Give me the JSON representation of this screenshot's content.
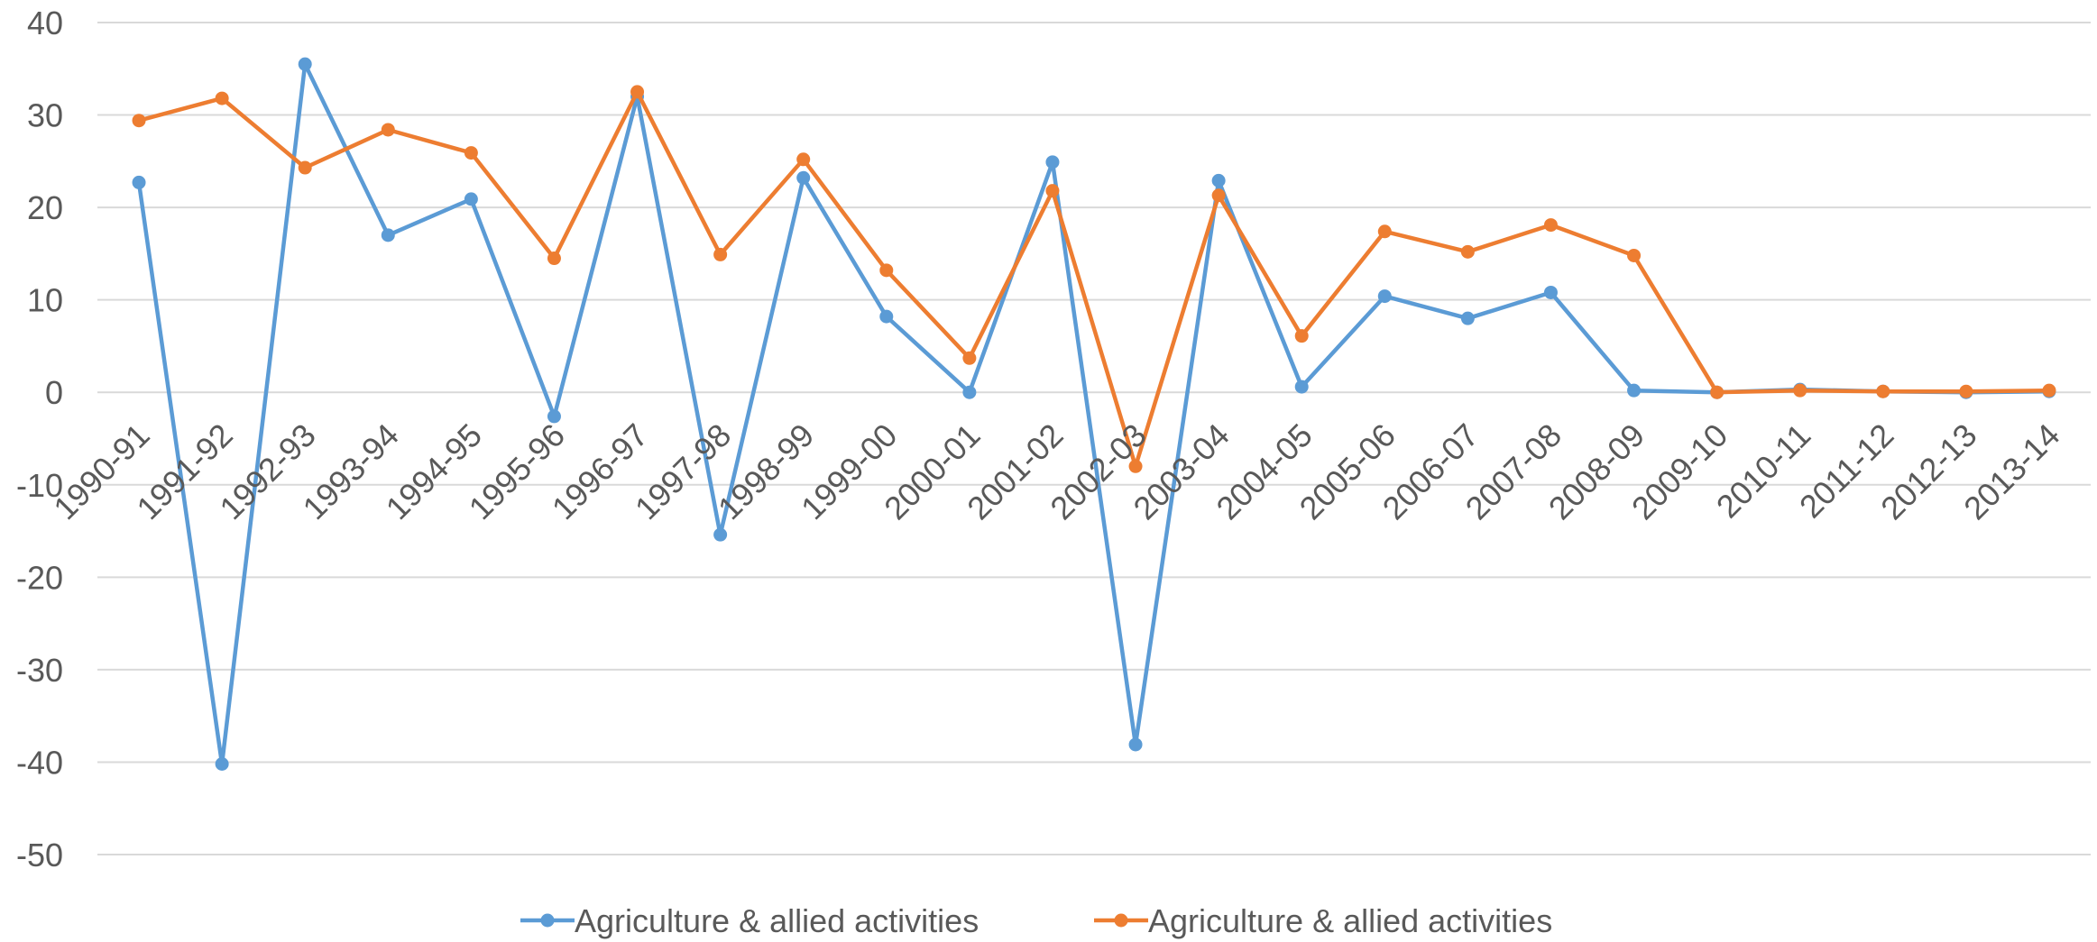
{
  "chart_data": {
    "type": "line",
    "title": "",
    "xlabel": "",
    "ylabel": "",
    "categories": [
      "1990-91",
      "1991-92",
      "1992-93",
      "1993-94",
      "1994-95",
      "1995-96",
      "1996-97",
      "1997-98",
      "1998-99",
      "1999-00",
      "2000-01",
      "2001-02",
      "2002-03",
      "2003-04",
      "2004-05",
      "2005-06",
      "2006-07",
      "2007-08",
      "2008-09",
      "2009-10",
      "2010-11",
      "2011-12",
      "2012-13",
      "2013-14"
    ],
    "ylim": [
      -50,
      40
    ],
    "yticks": [
      40,
      30,
      20,
      10,
      0,
      -10,
      -20,
      -30,
      -40,
      -50
    ],
    "grid": true,
    "legend_position": "bottom",
    "series": [
      {
        "name": "Agriculture & allied activities",
        "color": "#5B9BD5",
        "values": [
          22.7,
          -40.2,
          35.5,
          17.0,
          20.9,
          -2.6,
          32.0,
          -15.4,
          23.2,
          8.2,
          0.0,
          24.9,
          -38.1,
          22.9,
          0.6,
          10.4,
          8.0,
          10.8,
          0.2,
          0.0,
          0.3,
          0.1,
          0.0,
          0.1
        ]
      },
      {
        "name": "Agriculture & allied activities",
        "color": "#ED7D31",
        "values": [
          29.4,
          31.8,
          24.3,
          28.4,
          25.9,
          14.5,
          32.5,
          14.9,
          25.2,
          13.2,
          3.7,
          21.8,
          -8.0,
          21.3,
          6.1,
          17.4,
          15.2,
          18.1,
          14.8,
          0.0,
          0.2,
          0.1,
          0.1,
          0.2
        ]
      }
    ]
  }
}
